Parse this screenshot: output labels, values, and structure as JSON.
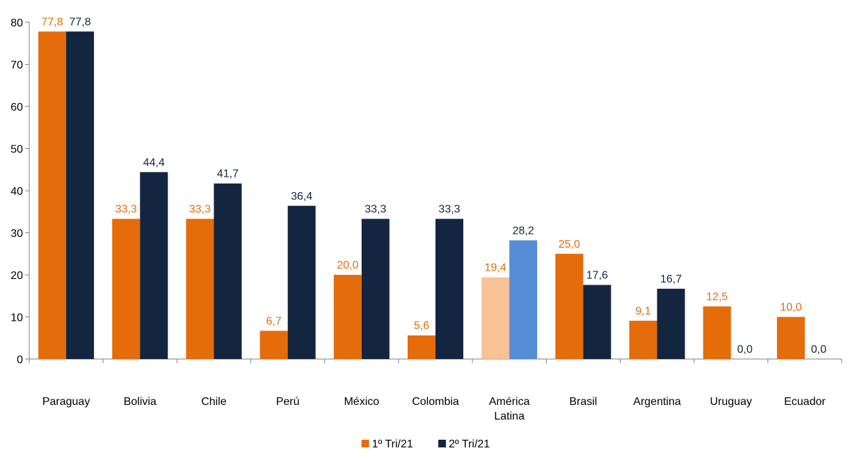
{
  "chart_data": {
    "type": "bar",
    "title": "",
    "xlabel": "",
    "ylabel": "",
    "ylim": [
      0,
      80
    ],
    "yticks": [
      "0",
      "10",
      "20",
      "30",
      "40",
      "50",
      "60",
      "70",
      "80"
    ],
    "grid": false,
    "legend_position": "bottom",
    "categories": [
      [
        "Paraguay"
      ],
      [
        "Bolivia"
      ],
      [
        "Chile"
      ],
      [
        "Perú"
      ],
      [
        "México"
      ],
      [
        "Colombia"
      ],
      [
        "América",
        "Latina"
      ],
      [
        "Brasil"
      ],
      [
        "Argentina"
      ],
      [
        "Uruguay"
      ],
      [
        "Ecuador"
      ]
    ],
    "series": [
      {
        "name": "1º Tri/21",
        "color": "#E46C0A",
        "label_color": "#E46C0A",
        "values": [
          77.8,
          33.3,
          33.3,
          6.7,
          20.0,
          5.6,
          19.4,
          25.0,
          9.1,
          12.5,
          10.0
        ],
        "labels": [
          "77,8",
          "33,3",
          "33,3",
          "6,7",
          "20,0",
          "5,6",
          "19,4",
          "25,0",
          "9,1",
          "12,5",
          "10,0"
        ],
        "highlight_index": 6,
        "highlight_color": "#F8C196"
      },
      {
        "name": "2º Tri/21",
        "color": "#13253F",
        "label_color": "#13253F",
        "values": [
          77.8,
          44.4,
          41.7,
          36.4,
          33.3,
          33.3,
          28.2,
          17.6,
          16.7,
          0.0,
          0.0
        ],
        "labels": [
          "77,8",
          "44,4",
          "41,7",
          "36,4",
          "33,3",
          "33,3",
          "28,2",
          "17,6",
          "16,7",
          "0,0",
          "0,0"
        ],
        "highlight_index": 6,
        "highlight_color": "#558ED5"
      }
    ]
  }
}
